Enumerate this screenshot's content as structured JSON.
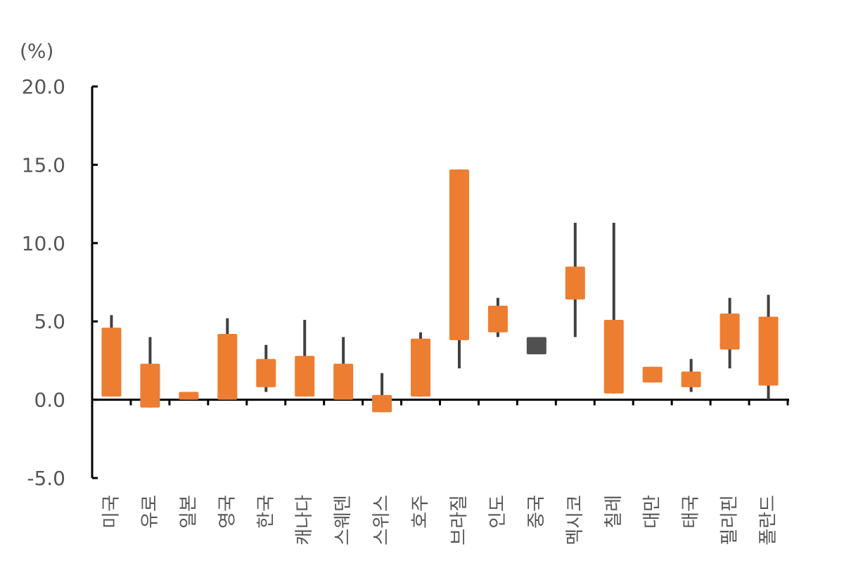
{
  "chart_data": {
    "type": "candlestick",
    "unit_label": "(%)",
    "ylim": [
      -5,
      20
    ],
    "y_ticks": [
      20,
      15,
      10,
      5,
      0,
      -5
    ],
    "y_tick_labels": [
      "20.0",
      "15.0",
      "10.0",
      "5.0",
      "0.0",
      "-5.0"
    ],
    "categories": [
      "미국",
      "유로",
      "일본",
      "영국",
      "한국",
      "캐나다",
      "스웨덴",
      "스위스",
      "호주",
      "브라질",
      "인도",
      "중국",
      "멕시코",
      "칠레",
      "대만",
      "태국",
      "필리핀",
      "폴란드"
    ],
    "series": [
      {
        "values": [
          {
            "low": 0.2,
            "high": 5.4,
            "box_low": 0.2,
            "box_high": 4.6
          },
          {
            "low": -0.5,
            "high": 4.0,
            "box_low": -0.5,
            "box_high": 2.3
          },
          {
            "low": 0.0,
            "high": 0.5,
            "box_low": 0.0,
            "box_high": 0.5
          },
          {
            "low": 0.0,
            "high": 5.2,
            "box_low": 0.0,
            "box_high": 4.2
          },
          {
            "low": 0.5,
            "high": 3.5,
            "box_low": 0.8,
            "box_high": 2.6
          },
          {
            "low": 0.2,
            "high": 5.1,
            "box_low": 0.2,
            "box_high": 2.8
          },
          {
            "low": 0.0,
            "high": 4.0,
            "box_low": 0.0,
            "box_high": 2.3
          },
          {
            "low": -0.8,
            "high": 1.7,
            "box_low": -0.8,
            "box_high": 0.3
          },
          {
            "low": 0.2,
            "high": 4.3,
            "box_low": 0.2,
            "box_high": 3.9
          },
          {
            "low": 2.0,
            "high": 14.7,
            "box_low": 3.8,
            "box_high": 14.7
          },
          {
            "low": 4.0,
            "high": 6.5,
            "box_low": 4.3,
            "box_high": 6.0
          },
          {
            "low": 2.9,
            "high": 4.0,
            "box_low": 2.9,
            "box_high": 4.0
          },
          {
            "low": 4.0,
            "high": 11.3,
            "box_low": 6.4,
            "box_high": 8.5
          },
          {
            "low": 0.4,
            "high": 11.3,
            "box_low": 0.4,
            "box_high": 5.1
          },
          {
            "low": 1.1,
            "high": 2.1,
            "box_low": 1.1,
            "box_high": 2.1
          },
          {
            "low": 0.5,
            "high": 2.6,
            "box_low": 0.8,
            "box_high": 1.8
          },
          {
            "low": 2.0,
            "high": 6.5,
            "box_low": 3.2,
            "box_high": 5.5
          },
          {
            "low": 0.0,
            "high": 6.7,
            "box_low": 0.9,
            "box_high": 5.3
          }
        ]
      }
    ],
    "colors": {
      "box_default": "#ED7D31",
      "box_highlight": "#505050",
      "whisker": "#404040",
      "axis": "#000000",
      "text": "#555555"
    },
    "highlight_category": "중국",
    "grid": false
  }
}
